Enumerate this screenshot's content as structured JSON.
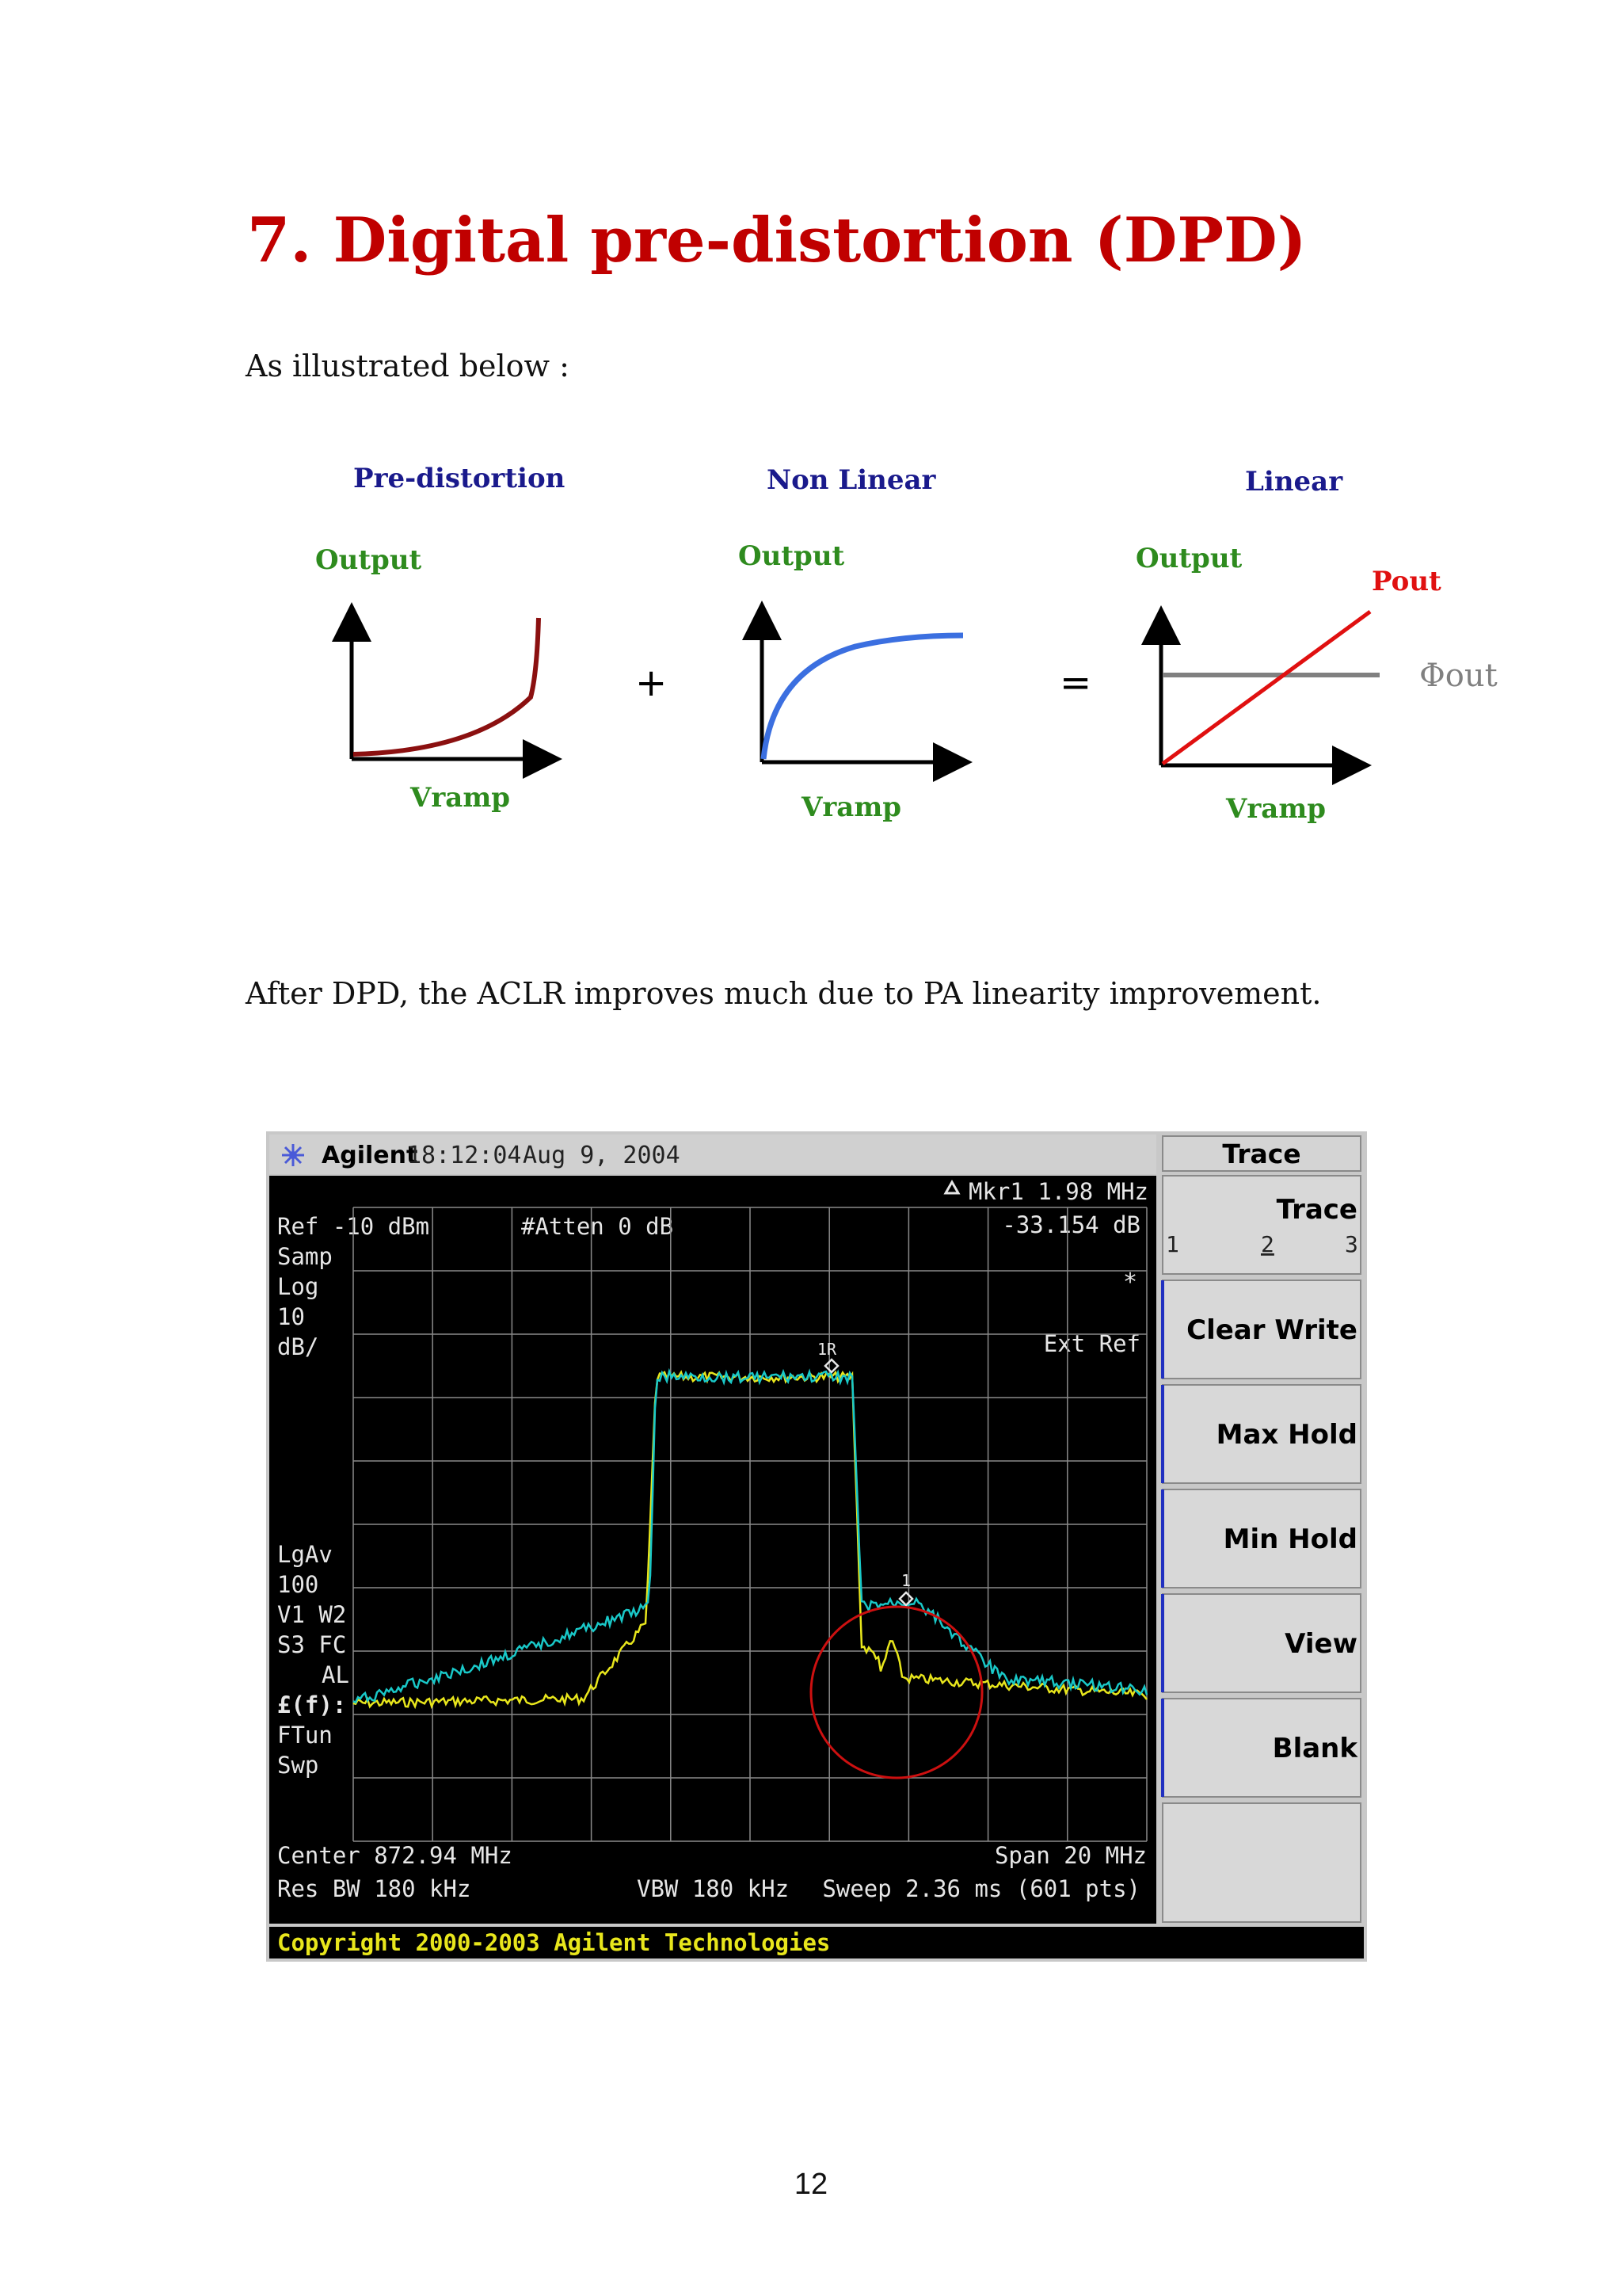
{
  "heading": "7. Digital pre-distortion (DPD)",
  "intro": "As illustrated below :",
  "diagram": {
    "panels": [
      {
        "title": "Pre-distortion",
        "ylabel": "Output",
        "xlabel": "Vramp"
      },
      {
        "title": "Non Linear",
        "ylabel": "Output",
        "xlabel": "Vramp"
      },
      {
        "title": "Linear",
        "ylabel": "Output",
        "xlabel": "Vramp",
        "curve_label": "Pout",
        "phase_label": "Φout"
      }
    ],
    "plus": "+",
    "equals": "=",
    "colors": {
      "title": "#1a1a8c",
      "axis_label": "#2e8b1e",
      "predistortion": "#8b1010",
      "nonlinear": "#3b6fe0",
      "pout": "#e01010",
      "phase": "#808080"
    }
  },
  "paragraph": "After DPD, the ACLR improves much due to PA linearity improvement.",
  "analyzer": {
    "brand": "Agilent",
    "time": "18:12:04",
    "date": "Aug 9, 2004",
    "marker": "Mkr1  1.98 MHz",
    "marker_value": "-33.154 dB",
    "ref": "Ref -10 dBm",
    "atten": "#Atten 0 dB",
    "left_labels": [
      "Samp",
      "Log",
      "10",
      "dB/"
    ],
    "left_labels2": [
      "LgAv",
      "100",
      "V1  W2",
      "S3  FC",
      "AL",
      "£(f):",
      "FTun",
      "Swp"
    ],
    "asterisk": "*",
    "ext_ref": "Ext Ref",
    "marker_1r": "1R",
    "marker_1": "1",
    "center": "Center 872.94 MHz",
    "span": "Span 20 MHz",
    "res_bw": "Res BW 180 kHz",
    "vbw": "VBW 180 kHz",
    "sweep": "Sweep 2.36 ms (601 pts)",
    "copyright": "Copyright 2000-2003 Agilent Technologies",
    "softkey_title": "Trace",
    "softkeys": [
      {
        "label": "Trace",
        "sub": [
          "1",
          "2",
          "3"
        ]
      },
      {
        "label": "Clear Write"
      },
      {
        "label": "Max Hold"
      },
      {
        "label": "Min Hold"
      },
      {
        "label": "View"
      },
      {
        "label": "Blank"
      },
      {
        "label": ""
      }
    ],
    "colors": {
      "trace_cyan": "#19c8c8",
      "trace_yellow": "#e8e61c",
      "circle": "#cc1010",
      "grid": "#8a8a8a",
      "screen": "#000000"
    }
  },
  "page_number": "12"
}
